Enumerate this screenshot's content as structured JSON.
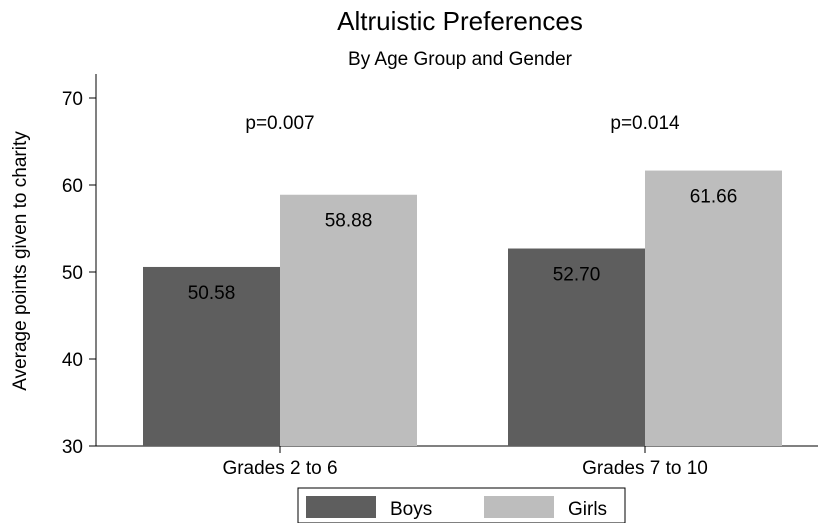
{
  "chart_data": {
    "type": "bar",
    "title": "Altruistic Preferences",
    "subtitle": "By Age Group and Gender",
    "ylabel": "Average points given to charity",
    "xlabel": "",
    "ylim": [
      30,
      70
    ],
    "yticks": [
      30,
      40,
      50,
      60,
      70
    ],
    "categories": [
      "Grades 2 to 6",
      "Grades 7 to 10"
    ],
    "series": [
      {
        "name": "Boys",
        "color": "#5e5e5e",
        "values": [
          50.58,
          52.7
        ],
        "labels": [
          "50.58",
          "52.70"
        ]
      },
      {
        "name": "Girls",
        "color": "#bdbdbd",
        "values": [
          58.88,
          61.66
        ],
        "labels": [
          "58.88",
          "61.66"
        ]
      }
    ],
    "annotations": [
      "p=0.007",
      "p=0.014"
    ],
    "legend": "bottom",
    "grid": false
  }
}
